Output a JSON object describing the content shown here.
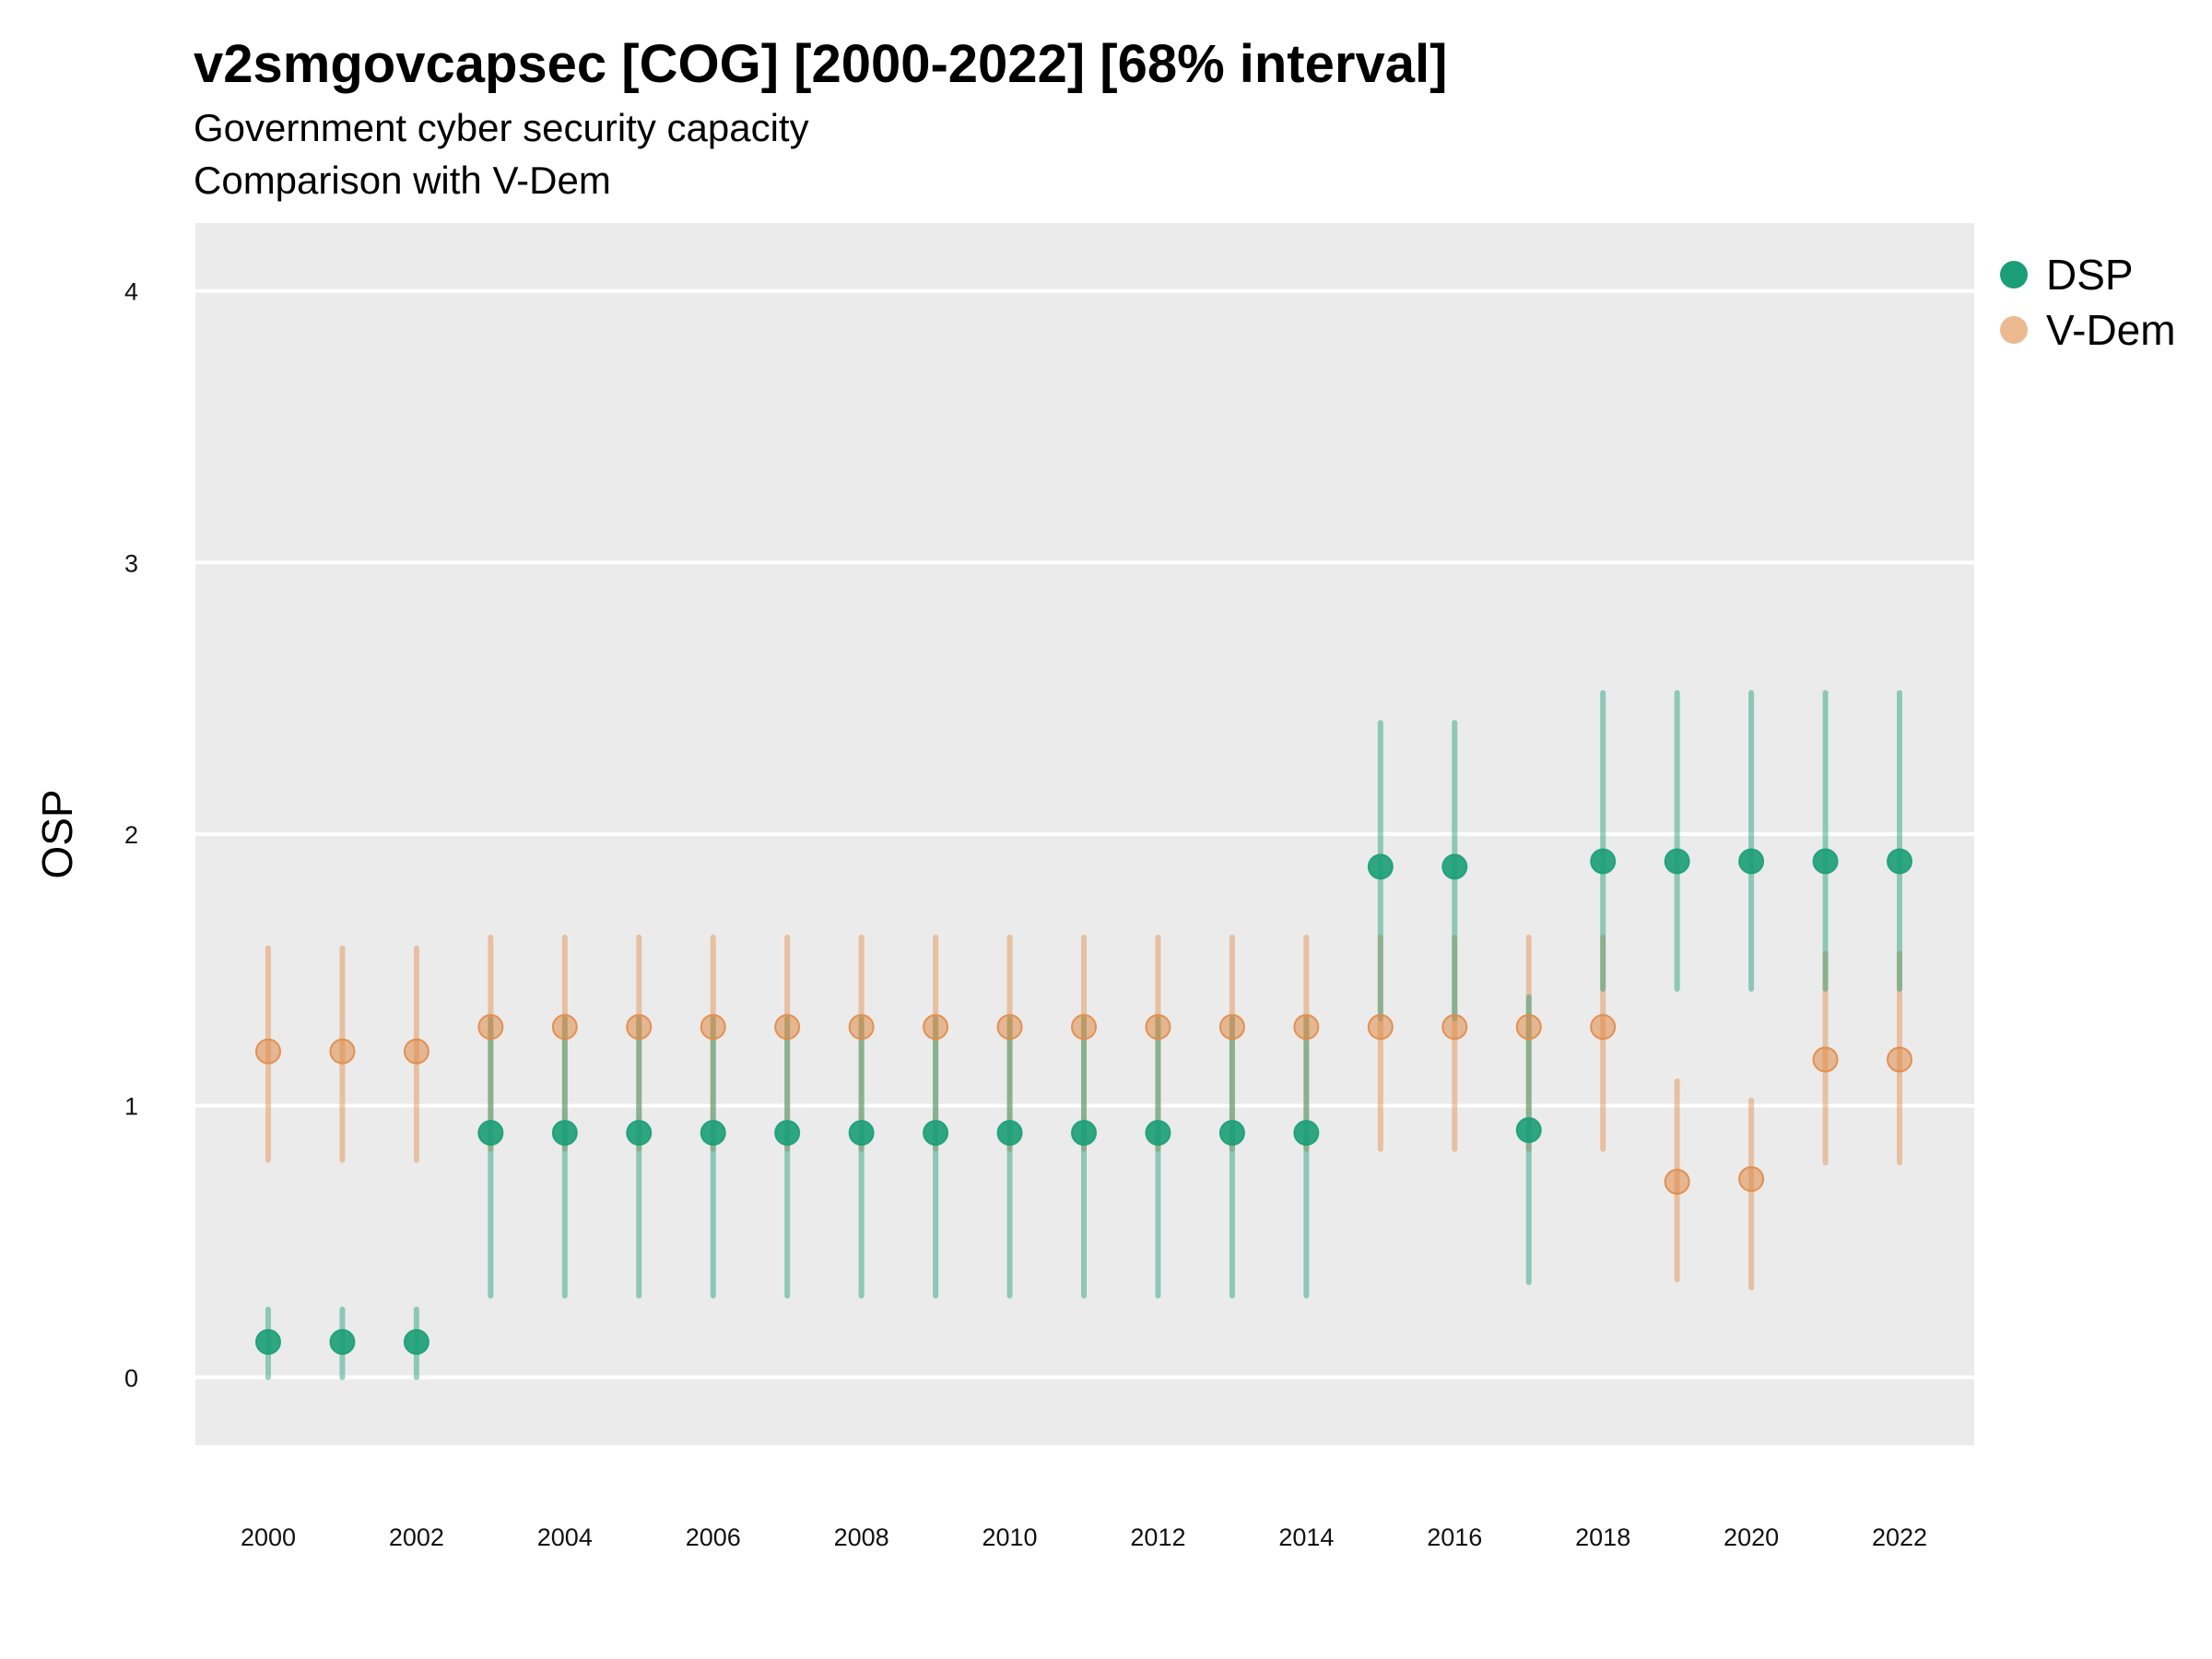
{
  "title": "v2smgovcapsec [COG] [2000-2022] [68% interval]",
  "subtitle": "Government cyber security capacity",
  "caption": "Comparison with V-Dem",
  "colors": {
    "dsp": "#1b9e77",
    "vdem": "#e08b48",
    "panel": "#ebebeb",
    "grid": "#ffffff"
  },
  "legend": [
    {
      "label": "DSP",
      "color": "#1b9e77"
    },
    {
      "label": "V-Dem",
      "color": "#e08b48"
    }
  ],
  "chart_data": {
    "type": "scatter",
    "title": "v2smgovcapsec [COG] [2000-2022] [68% interval]",
    "ylabel": "OSP",
    "xlabel": "",
    "ylim": [
      -0.25,
      4.25
    ],
    "yticks": [
      0,
      1,
      2,
      3,
      4
    ],
    "xticks": [
      2000,
      2002,
      2004,
      2006,
      2008,
      2010,
      2012,
      2014,
      2016,
      2018,
      2020,
      2022
    ],
    "x": [
      2000,
      2001,
      2002,
      2003,
      2004,
      2005,
      2006,
      2007,
      2008,
      2009,
      2010,
      2011,
      2012,
      2013,
      2014,
      2015,
      2016,
      2017,
      2018,
      2019,
      2020,
      2021,
      2022
    ],
    "grid": true,
    "legend_position": "right",
    "series": [
      {
        "name": "DSP",
        "color": "#1b9e77",
        "values": [
          0.13,
          0.13,
          0.13,
          0.9,
          0.9,
          0.9,
          0.9,
          0.9,
          0.9,
          0.9,
          0.9,
          0.9,
          0.9,
          0.9,
          0.9,
          1.88,
          1.88,
          0.91,
          1.9,
          1.9,
          1.9,
          1.9,
          1.9
        ],
        "lower": [
          0.0,
          0.0,
          0.0,
          0.3,
          0.3,
          0.3,
          0.3,
          0.3,
          0.3,
          0.3,
          0.3,
          0.3,
          0.3,
          0.3,
          0.3,
          1.32,
          1.32,
          0.35,
          1.43,
          1.43,
          1.43,
          1.43,
          1.43
        ],
        "upper": [
          0.25,
          0.25,
          0.25,
          1.32,
          1.32,
          1.32,
          1.32,
          1.32,
          1.32,
          1.32,
          1.32,
          1.32,
          1.32,
          1.32,
          1.32,
          2.41,
          2.41,
          1.4,
          2.52,
          2.52,
          2.52,
          2.52,
          2.52
        ]
      },
      {
        "name": "V-Dem",
        "color": "#e08b48",
        "values": [
          1.2,
          1.2,
          1.2,
          1.29,
          1.29,
          1.29,
          1.29,
          1.29,
          1.29,
          1.29,
          1.29,
          1.29,
          1.29,
          1.29,
          1.29,
          1.29,
          1.29,
          1.29,
          1.29,
          0.72,
          0.73,
          1.17,
          1.17
        ],
        "lower": [
          0.8,
          0.8,
          0.8,
          0.84,
          0.84,
          0.84,
          0.84,
          0.84,
          0.84,
          0.84,
          0.84,
          0.84,
          0.84,
          0.84,
          0.84,
          0.84,
          0.84,
          0.84,
          0.84,
          0.36,
          0.33,
          0.79,
          0.79
        ],
        "upper": [
          1.58,
          1.58,
          1.58,
          1.62,
          1.62,
          1.62,
          1.62,
          1.62,
          1.62,
          1.62,
          1.62,
          1.62,
          1.62,
          1.62,
          1.62,
          1.62,
          1.62,
          1.62,
          1.62,
          1.09,
          1.02,
          1.56,
          1.56
        ]
      }
    ]
  }
}
